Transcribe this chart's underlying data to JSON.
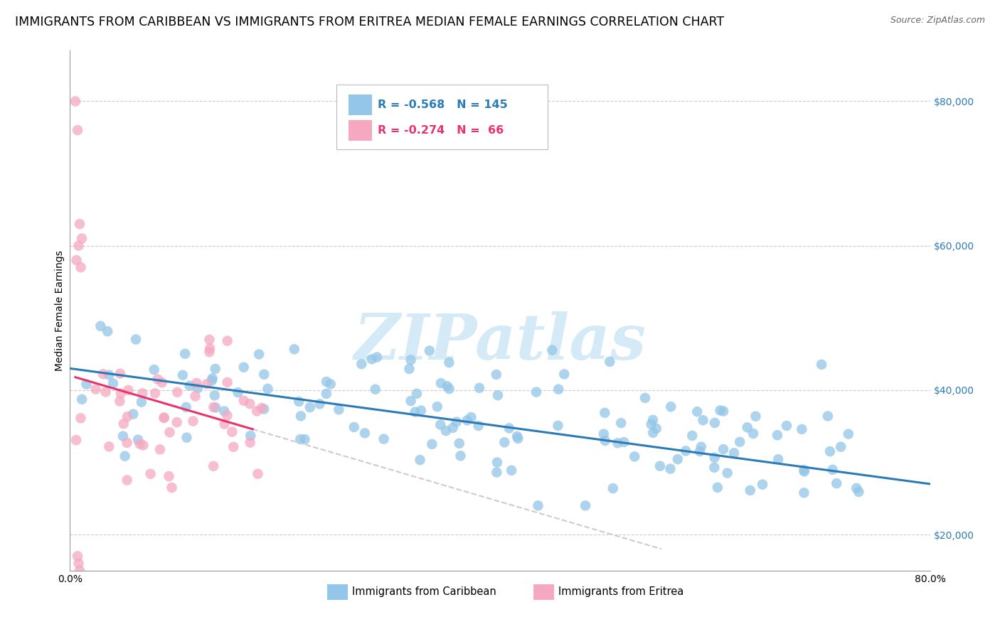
{
  "title": "IMMIGRANTS FROM CARIBBEAN VS IMMIGRANTS FROM ERITREA MEDIAN FEMALE EARNINGS CORRELATION CHART",
  "source": "Source: ZipAtlas.com",
  "ylabel": "Median Female Earnings",
  "xlim": [
    0.0,
    0.8
  ],
  "ylim": [
    15000,
    87000
  ],
  "yticks": [
    20000,
    40000,
    60000,
    80000
  ],
  "ytick_labels": [
    "$20,000",
    "$40,000",
    "$60,000",
    "$80,000"
  ],
  "xticks": [
    0.0,
    0.1,
    0.2,
    0.3,
    0.4,
    0.5,
    0.6,
    0.7,
    0.8
  ],
  "xtick_labels": [
    "0.0%",
    "",
    "",
    "",
    "",
    "",
    "",
    "",
    "80.0%"
  ],
  "caribbean_R": -0.568,
  "caribbean_N": 145,
  "eritrea_R": -0.274,
  "eritrea_N": 66,
  "blue_color": "#93c6e8",
  "pink_color": "#f5a8c0",
  "blue_line_color": "#2c7bb6",
  "pink_line_color": "#e8336e",
  "watermark": "ZIPatlas",
  "watermark_color": "#d4eaf7",
  "legend_label_caribbean": "Immigrants from Caribbean",
  "legend_label_eritrea": "Immigrants from Eritrea",
  "background_color": "#ffffff",
  "grid_color": "#cccccc",
  "title_fontsize": 12.5,
  "axis_label_fontsize": 10,
  "tick_fontsize": 10
}
